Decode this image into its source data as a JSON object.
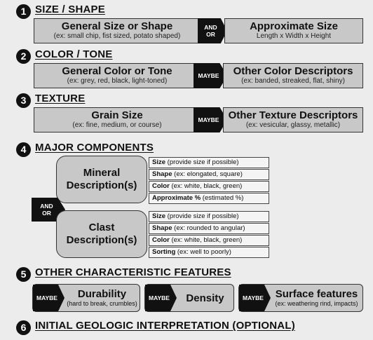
{
  "s1": {
    "number": "1",
    "heading": "SIZE / SHAPE",
    "left": {
      "title": "General Size or Shape",
      "sub": "(ex: small chip, fist sized, potato shaped)"
    },
    "connector": {
      "line1": "AND",
      "line2": "OR"
    },
    "right": {
      "title": "Approximate Size",
      "sub": "Length x Width x Height"
    }
  },
  "s2": {
    "number": "2",
    "heading": "COLOR / TONE",
    "left": {
      "title": "General Color or Tone",
      "sub": "(ex: grey, red, black, light-toned)"
    },
    "connector": "MAYBE",
    "right": {
      "title": "Other Color Descriptors",
      "sub": "(ex: banded, streaked, flat, shiny)"
    }
  },
  "s3": {
    "number": "3",
    "heading": "TEXTURE",
    "left": {
      "title": "Grain Size",
      "sub": "(ex: fine, medium, or course)"
    },
    "connector": "MAYBE",
    "right": {
      "title": "Other Texture Descriptors",
      "sub": "(ex: vesicular, glassy, metallic)"
    }
  },
  "s4": {
    "number": "4",
    "heading": "MAJOR COMPONENTS",
    "connector": {
      "line1": "AND",
      "line2": "OR"
    },
    "mineral": {
      "line1": "Mineral",
      "line2": "Description(s)",
      "attrs": [
        {
          "key": "Size",
          "rest": " (provide size if possible)"
        },
        {
          "key": "Shape",
          "rest": " (ex: elongated, square)"
        },
        {
          "key": "Color",
          "rest": " (ex: white, black, green)"
        },
        {
          "key": "Approximate %",
          "rest": " (estimated %)"
        }
      ]
    },
    "clast": {
      "line1": "Clast",
      "line2": "Description(s)",
      "attrs": [
        {
          "key": "Size",
          "rest": " (provide size if possible)"
        },
        {
          "key": "Shape",
          "rest": " (ex: rounded to angular)"
        },
        {
          "key": "Color",
          "rest": " (ex: white, black, green)"
        },
        {
          "key": "Sorting",
          "rest": " (ex: well to poorly)"
        }
      ]
    }
  },
  "s5": {
    "number": "5",
    "heading": "OTHER CHARACTERISTIC FEATURES",
    "features": [
      {
        "tag": "MAYBE",
        "title": "Durability",
        "sub": "(hard to break, crumbles)"
      },
      {
        "tag": "MAYBE",
        "title": "Density",
        "sub": ""
      },
      {
        "tag": "MAYBE",
        "title": "Surface features",
        "sub": "(ex: weathering rind, impacts)"
      }
    ]
  },
  "s6": {
    "number": "6",
    "heading": "INITIAL GEOLOGIC INTERPRETATION (OPTIONAL)"
  }
}
